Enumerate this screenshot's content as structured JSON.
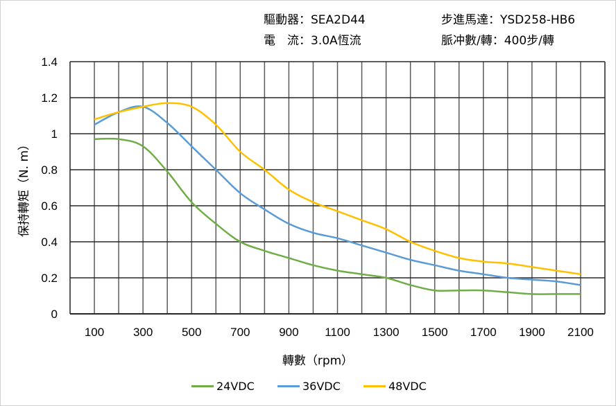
{
  "header": {
    "driver": "驅動器：SEA2D44",
    "motor": "步進馬達：YSD258-HB6",
    "current": "電　流：3.0A恆流",
    "pulses": "脈冲數/轉：400步/轉"
  },
  "chart_data": {
    "type": "line",
    "title": "",
    "xlabel": "轉數（rpm）",
    "ylabel": "保持轉矩（N. m）",
    "xlim": [
      0,
      2200
    ],
    "ylim": [
      0,
      1.4
    ],
    "grid": true,
    "legend_position": "bottom",
    "x_ticks": [
      "100",
      "300",
      "500",
      "700",
      "900",
      "1100",
      "1300",
      "1500",
      "1700",
      "1900",
      "2100"
    ],
    "y_ticks": [
      "0",
      "0.2",
      "0.4",
      "0.6",
      "0.8",
      "1",
      "1.2",
      "1.4"
    ],
    "x": [
      100,
      200,
      300,
      400,
      500,
      600,
      700,
      800,
      900,
      1000,
      1100,
      1200,
      1300,
      1400,
      1500,
      1600,
      1700,
      1800,
      1900,
      2000,
      2100
    ],
    "series": [
      {
        "name": "24VDC",
        "color": "#70ad47",
        "values": [
          0.97,
          0.97,
          0.93,
          0.79,
          0.62,
          0.5,
          0.4,
          0.35,
          0.31,
          0.27,
          0.24,
          0.22,
          0.2,
          0.16,
          0.13,
          0.13,
          0.13,
          0.12,
          0.11,
          0.11,
          0.11
        ]
      },
      {
        "name": "36VDC",
        "color": "#5b9bd5",
        "values": [
          1.05,
          1.12,
          1.15,
          1.06,
          0.93,
          0.8,
          0.67,
          0.58,
          0.5,
          0.45,
          0.42,
          0.38,
          0.34,
          0.3,
          0.27,
          0.24,
          0.22,
          0.2,
          0.19,
          0.18,
          0.16
        ]
      },
      {
        "name": "48VDC",
        "color": "#ffc000",
        "values": [
          1.08,
          1.12,
          1.15,
          1.17,
          1.15,
          1.05,
          0.9,
          0.8,
          0.69,
          0.62,
          0.57,
          0.52,
          0.47,
          0.4,
          0.35,
          0.31,
          0.29,
          0.28,
          0.26,
          0.24,
          0.22
        ]
      }
    ]
  }
}
